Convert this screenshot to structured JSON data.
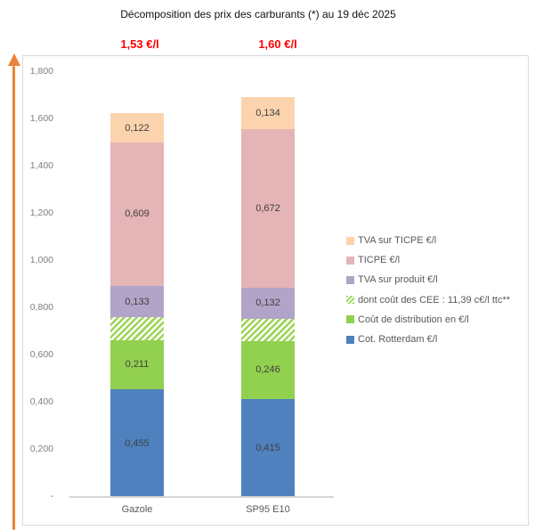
{
  "title": "Décomposition des prix des carburants (*) au 19 déc 2025",
  "chart_data": {
    "type": "bar",
    "subtype": "stacked-column",
    "title": "Décomposition des prix des carburants (*) au 19 déc 2025",
    "categories": [
      "Gazole",
      "SP95 E10"
    ],
    "bar_totals": [
      "1,53 €/l",
      "1,60 €/l"
    ],
    "series": [
      {
        "name": "Cot. Rotterdam €/l",
        "values": [
          0.455,
          0.415
        ],
        "labels": [
          "0,455",
          "0,415"
        ],
        "color": "#4E81BD",
        "hatched": false
      },
      {
        "name": "Coût de distribution en €/l",
        "values": [
          0.211,
          0.246
        ],
        "labels": [
          "0,211",
          "0,246"
        ],
        "color": "#92D050",
        "hatched": false
      },
      {
        "name": "dont coût des CEE : 11,39 c€/l ttc**",
        "values": [
          0.095,
          0.095
        ],
        "labels": [
          "",
          ""
        ],
        "color": "#9CD455",
        "hatched": true
      },
      {
        "name": "TVA sur produit €/l",
        "values": [
          0.133,
          0.132
        ],
        "labels": [
          "0,133",
          "0,132"
        ],
        "color": "#B1A4C8",
        "hatched": false
      },
      {
        "name": "TICPE €/l",
        "values": [
          0.609,
          0.672
        ],
        "labels": [
          "0,609",
          "0,672"
        ],
        "color": "#E5B4B6",
        "hatched": false
      },
      {
        "name": "TVA sur TICPE €/l",
        "values": [
          0.122,
          0.134
        ],
        "labels": [
          "0,122",
          "0,134"
        ],
        "color": "#FBD3AD",
        "hatched": false
      }
    ],
    "y_axis": {
      "ticks": [
        "1,800",
        "1,600",
        "1,400",
        "1,200",
        "1,000",
        "0,800",
        "0,600",
        "0,400",
        "0,200",
        "-"
      ],
      "min": 0,
      "max": 1.8,
      "step": 0.2
    },
    "legend_position": "right",
    "gridlines": false
  },
  "colors": {
    "price_label": "#FF0000",
    "arrow": "#EE8239",
    "axis_text": "#7F7F7F",
    "legend_text": "#595959",
    "chart_border": "#D9D9D9"
  }
}
